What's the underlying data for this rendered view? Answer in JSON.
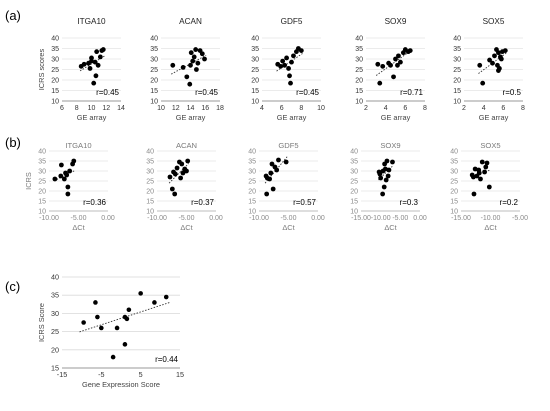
{
  "figure": {
    "panel_labels": {
      "a": "(a)",
      "b": "(b)",
      "c": "(c)"
    }
  },
  "chart_data": [
    {
      "panel": "a",
      "index": 0,
      "type": "scatter",
      "title": "ITGA10",
      "xlabel": "GE array",
      "ylabel": "ICRS scores",
      "xlim": [
        6,
        14
      ],
      "ylim": [
        10,
        40
      ],
      "xticks": [
        "6",
        "8",
        "10",
        "12",
        "14"
      ],
      "yticks": [
        "10",
        "15",
        "20",
        "25",
        "30",
        "35",
        "40"
      ],
      "annotation": "r=0.45",
      "grid": "horizontal",
      "trendline": true,
      "points": [
        [
          8.6,
          26.5
        ],
        [
          9.0,
          27.5
        ],
        [
          9.6,
          28.0
        ],
        [
          9.8,
          25.5
        ],
        [
          10.0,
          30.5
        ],
        [
          10.0,
          29.0
        ],
        [
          10.3,
          18.5
        ],
        [
          10.5,
          28.5
        ],
        [
          10.6,
          22.0
        ],
        [
          10.7,
          33.5
        ],
        [
          10.9,
          27.0
        ],
        [
          11.2,
          31.0
        ],
        [
          11.4,
          34.0
        ],
        [
          11.6,
          34.5
        ]
      ]
    },
    {
      "panel": "a",
      "index": 1,
      "type": "scatter",
      "title": "ACAN",
      "xlabel": "GE array",
      "ylabel": "",
      "xlim": [
        10,
        18
      ],
      "ylim": [
        10,
        40
      ],
      "xticks": [
        "10",
        "12",
        "14",
        "16",
        "18"
      ],
      "yticks": [
        "10",
        "15",
        "20",
        "25",
        "30",
        "35",
        "40"
      ],
      "annotation": "r=0.45",
      "grid": "horizontal",
      "trendline": true,
      "points": [
        [
          11.6,
          27.0
        ],
        [
          13.0,
          26.0
        ],
        [
          13.5,
          21.5
        ],
        [
          13.9,
          18.0
        ],
        [
          14.0,
          27.0
        ],
        [
          14.1,
          33.0
        ],
        [
          14.3,
          29.0
        ],
        [
          14.5,
          31.0
        ],
        [
          14.7,
          34.5
        ],
        [
          14.8,
          25.0
        ],
        [
          15.0,
          28.0
        ],
        [
          15.3,
          34.0
        ],
        [
          15.6,
          32.5
        ],
        [
          15.9,
          30.0
        ]
      ]
    },
    {
      "panel": "a",
      "index": 2,
      "type": "scatter",
      "title": "GDF5",
      "xlabel": "GE array",
      "ylabel": "",
      "xlim": [
        4,
        10
      ],
      "ylim": [
        10,
        40
      ],
      "xticks": [
        "4",
        "6",
        "8",
        "10"
      ],
      "yticks": [
        "10",
        "15",
        "20",
        "25",
        "30",
        "35",
        "40"
      ],
      "annotation": "r=0.45",
      "grid": "horizontal",
      "trendline": true,
      "points": [
        [
          5.6,
          27.5
        ],
        [
          5.9,
          26.5
        ],
        [
          6.1,
          29.0
        ],
        [
          6.3,
          27.0
        ],
        [
          6.5,
          30.5
        ],
        [
          6.7,
          25.5
        ],
        [
          6.8,
          22.0
        ],
        [
          6.9,
          18.5
        ],
        [
          7.0,
          28.5
        ],
        [
          7.2,
          31.5
        ],
        [
          7.5,
          33.5
        ],
        [
          7.7,
          35.0
        ],
        [
          8.0,
          34.0
        ]
      ]
    },
    {
      "panel": "a",
      "index": 3,
      "type": "scatter",
      "title": "SOX9",
      "xlabel": "GE array",
      "ylabel": "",
      "xlim": [
        2,
        8
      ],
      "ylim": [
        10,
        40
      ],
      "xticks": [
        "2",
        "4",
        "6",
        "8"
      ],
      "yticks": [
        "10",
        "15",
        "20",
        "25",
        "30",
        "35",
        "40"
      ],
      "annotation": "r=0.71",
      "grid": "horizontal",
      "trendline": true,
      "points": [
        [
          3.2,
          27.5
        ],
        [
          3.4,
          18.5
        ],
        [
          3.7,
          26.5
        ],
        [
          4.3,
          28.0
        ],
        [
          4.5,
          27.0
        ],
        [
          4.8,
          21.5
        ],
        [
          5.0,
          30.0
        ],
        [
          5.3,
          31.5
        ],
        [
          5.5,
          28.5
        ],
        [
          5.8,
          33.0
        ],
        [
          6.0,
          34.5
        ],
        [
          6.3,
          33.5
        ],
        [
          6.5,
          34.0
        ],
        [
          5.2,
          27.0
        ]
      ]
    },
    {
      "panel": "a",
      "index": 4,
      "type": "scatter",
      "title": "SOX5",
      "xlabel": "GE array",
      "ylabel": "",
      "xlim": [
        2,
        8
      ],
      "ylim": [
        10,
        40
      ],
      "xticks": [
        "2",
        "4",
        "6",
        "8"
      ],
      "yticks": [
        "10",
        "15",
        "20",
        "25",
        "30",
        "35",
        "40"
      ],
      "annotation": "r=0.5",
      "grid": "horizontal",
      "trendline": true,
      "points": [
        [
          3.6,
          27.0
        ],
        [
          3.9,
          18.5
        ],
        [
          4.6,
          29.5
        ],
        [
          4.9,
          28.0
        ],
        [
          5.1,
          31.5
        ],
        [
          5.3,
          34.5
        ],
        [
          5.4,
          27.0
        ],
        [
          5.5,
          33.0
        ],
        [
          5.6,
          25.5
        ],
        [
          5.7,
          31.0
        ],
        [
          5.8,
          30.0
        ],
        [
          5.9,
          33.5
        ],
        [
          6.2,
          34.0
        ],
        [
          5.5,
          24.5
        ]
      ]
    },
    {
      "panel": "b",
      "index": 0,
      "type": "scatter",
      "title": "ITGA10",
      "xlabel": "ΔCt",
      "ylabel": "ICRS",
      "xlim": [
        -10,
        0
      ],
      "ylim": [
        10,
        40
      ],
      "xticks": [
        "-10.00",
        "-5.00",
        "0.00"
      ],
      "yticks": [
        "10",
        "15",
        "20",
        "25",
        "30",
        "35",
        "40"
      ],
      "annotation": "r=0.36",
      "grid": "horizontal",
      "trendline": true,
      "points": [
        [
          -9.0,
          26.0
        ],
        [
          -8.0,
          27.5
        ],
        [
          -7.9,
          33.0
        ],
        [
          -7.4,
          26.0
        ],
        [
          -7.0,
          28.0
        ],
        [
          -6.8,
          22.0
        ],
        [
          -6.8,
          18.5
        ],
        [
          -6.5,
          30.0
        ],
        [
          -6.0,
          33.5
        ],
        [
          -5.8,
          35.0
        ],
        [
          -7.2,
          29.0
        ]
      ]
    },
    {
      "panel": "b",
      "index": 1,
      "type": "scatter",
      "title": "ACAN",
      "xlabel": "ΔCt",
      "ylabel": "",
      "xlim": [
        -10,
        0
      ],
      "ylim": [
        10,
        40
      ],
      "xticks": [
        "-10.00",
        "-5.00",
        "0.00"
      ],
      "yticks": [
        "10",
        "15",
        "20",
        "25",
        "30",
        "35",
        "40"
      ],
      "annotation": "r=0.37",
      "grid": "horizontal",
      "trendline": true,
      "points": [
        [
          -7.8,
          27.0
        ],
        [
          -7.4,
          21.0
        ],
        [
          -7.0,
          18.5
        ],
        [
          -6.9,
          28.5
        ],
        [
          -6.6,
          31.5
        ],
        [
          -6.2,
          34.5
        ],
        [
          -6.0,
          26.5
        ],
        [
          -5.8,
          33.5
        ],
        [
          -5.6,
          29.0
        ],
        [
          -5.3,
          31.0
        ],
        [
          -5.0,
          30.0
        ],
        [
          -4.8,
          35.0
        ],
        [
          -7.2,
          29.5
        ]
      ]
    },
    {
      "panel": "b",
      "index": 2,
      "type": "scatter",
      "title": "GDF5",
      "xlabel": "ΔCt",
      "ylabel": "",
      "xlim": [
        -10,
        0
      ],
      "ylim": [
        10,
        40
      ],
      "xticks": [
        "-10.00",
        "-5.00",
        "0.00"
      ],
      "yticks": [
        "10",
        "15",
        "20",
        "25",
        "30",
        "35",
        "40"
      ],
      "annotation": "r=0.57",
      "grid": "horizontal",
      "trendline": true,
      "points": [
        [
          -8.8,
          27.5
        ],
        [
          -8.7,
          18.5
        ],
        [
          -8.6,
          26.5
        ],
        [
          -8.0,
          29.0
        ],
        [
          -7.8,
          33.5
        ],
        [
          -7.6,
          21.0
        ],
        [
          -7.0,
          30.5
        ],
        [
          -6.7,
          35.5
        ],
        [
          -5.4,
          34.5
        ],
        [
          -7.3,
          32.0
        ],
        [
          -8.2,
          26.0
        ]
      ]
    },
    {
      "panel": "b",
      "index": 3,
      "type": "scatter",
      "title": "SOX9",
      "xlabel": "ΔCt",
      "ylabel": "",
      "xlim": [
        -15,
        0
      ],
      "ylim": [
        10,
        40
      ],
      "xticks": [
        "-15.00",
        "-10.00",
        "-5.00",
        "0.00"
      ],
      "yticks": [
        "10",
        "15",
        "20",
        "25",
        "30",
        "35",
        "40"
      ],
      "annotation": "r=0.3",
      "grid": "horizontal",
      "trendline": true,
      "points": [
        [
          -10.4,
          29.5
        ],
        [
          -10.2,
          28.5
        ],
        [
          -10.0,
          26.5
        ],
        [
          -9.5,
          18.5
        ],
        [
          -9.1,
          22.0
        ],
        [
          -9.0,
          33.5
        ],
        [
          -8.8,
          31.0
        ],
        [
          -8.6,
          25.5
        ],
        [
          -8.4,
          35.0
        ],
        [
          -8.1,
          27.5
        ],
        [
          -7.9,
          30.5
        ],
        [
          -7.0,
          34.5
        ],
        [
          -9.4,
          30.0
        ]
      ]
    },
    {
      "panel": "b",
      "index": 4,
      "type": "scatter",
      "title": "SOX5",
      "xlabel": "ΔCt",
      "ylabel": "",
      "xlim": [
        -15,
        -5
      ],
      "ylim": [
        10,
        40
      ],
      "xticks": [
        "-15.00",
        "-10.00",
        "-5.00"
      ],
      "yticks": [
        "10",
        "15",
        "20",
        "25",
        "30",
        "35",
        "40"
      ],
      "annotation": "r=0.2",
      "grid": "horizontal",
      "trendline": true,
      "points": [
        [
          -13.1,
          28.0
        ],
        [
          -12.8,
          18.5
        ],
        [
          -12.6,
          31.0
        ],
        [
          -12.3,
          27.5
        ],
        [
          -12.0,
          30.5
        ],
        [
          -11.7,
          26.0
        ],
        [
          -11.4,
          34.5
        ],
        [
          -11.0,
          29.5
        ],
        [
          -10.6,
          34.0
        ],
        [
          -10.2,
          22.0
        ],
        [
          -12.9,
          27.0
        ],
        [
          -11.9,
          29.0
        ],
        [
          -10.8,
          32.0
        ]
      ]
    },
    {
      "panel": "c",
      "index": 0,
      "type": "scatter",
      "title": "",
      "xlabel": "Gene Expression Score",
      "ylabel": "ICRS Score",
      "xlim": [
        -15,
        15
      ],
      "ylim": [
        15,
        40
      ],
      "xticks": [
        "-15",
        "-5",
        "5",
        "15"
      ],
      "yticks": [
        "15",
        "20",
        "25",
        "30",
        "35",
        "40"
      ],
      "annotation": "r=0.44",
      "grid": "horizontal",
      "trendline": true,
      "points": [
        [
          -9.5,
          27.5
        ],
        [
          -6.5,
          33.0
        ],
        [
          -6.0,
          29.0
        ],
        [
          -5.0,
          26.0
        ],
        [
          -2.0,
          18.0
        ],
        [
          -1.0,
          26.0
        ],
        [
          1.0,
          21.5
        ],
        [
          1.5,
          28.5
        ],
        [
          2.0,
          31.0
        ],
        [
          5.0,
          35.5
        ],
        [
          8.5,
          33.0
        ],
        [
          11.5,
          34.5
        ],
        [
          1.0,
          29.0
        ]
      ]
    }
  ]
}
